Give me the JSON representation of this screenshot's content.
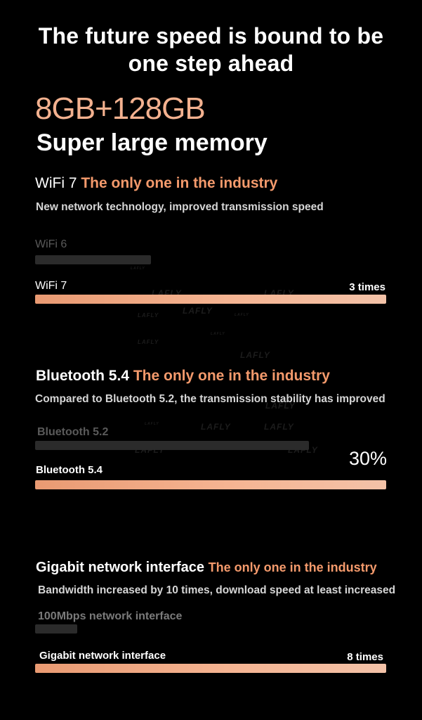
{
  "headline": {
    "line1": "The future speed is bound to be",
    "line2": "one step ahead"
  },
  "memory": {
    "size": "8GB+128GB",
    "label": "Super large memory"
  },
  "wifi": {
    "title": "WiFi 7",
    "badge": "The only one in the industry",
    "description": "New network technology, improved transmission speed",
    "compare_label": "WiFi 6",
    "compare_level": 0.33,
    "main_label": "WiFi 7",
    "main_level": 1.0,
    "figure": "3 times"
  },
  "bluetooth": {
    "title": "Bluetooth 5.4",
    "badge": "The only one in the industry",
    "description": "Compared to Bluetooth 5.2, the transmission stability has improved",
    "compare_label": "Bluetooth 5.2",
    "compare_level": 0.78,
    "main_label": "Bluetooth 5.4",
    "main_level": 1.0,
    "figure": "30%"
  },
  "ethernet": {
    "title": "Gigabit network interface",
    "badge": "The only one in the industry",
    "description": "Bandwidth increased by 10 times, download speed at least increased",
    "compare_label": "100Mbps network interface",
    "compare_level": 0.12,
    "main_label": "Gigabit network interface",
    "main_level": 1.0,
    "figure": "8 times"
  },
  "watermark": "LAFLY",
  "colors": {
    "accent": "#f49a6c",
    "memory": "#f3b18f",
    "background": "#000000",
    "bar_dim": "#2b2b2b"
  }
}
